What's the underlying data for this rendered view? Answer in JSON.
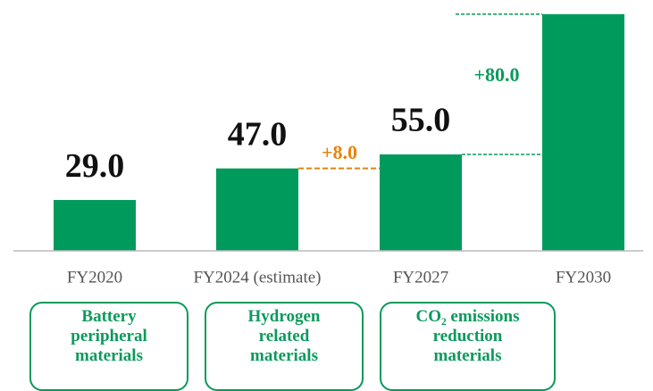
{
  "chart_data": {
    "type": "bar",
    "categories": [
      "FY2020",
      "FY2024 (estimate)",
      "FY2027",
      "FY2030"
    ],
    "values": [
      29,
      47,
      55,
      135
    ],
    "value_labels": [
      "29.0",
      "47.0",
      "55.0",
      null
    ],
    "color": "#009a5c",
    "ylim": [
      0,
      140
    ],
    "annotations": [
      {
        "text": "+8.0",
        "color": "#e8820c"
      },
      {
        "text": "+80.0",
        "color": "#0a9a5c"
      }
    ],
    "boxes": [
      "Battery peripheral materials",
      "Hydrogen related materials",
      "CO₂ emissions reduction materials"
    ]
  }
}
